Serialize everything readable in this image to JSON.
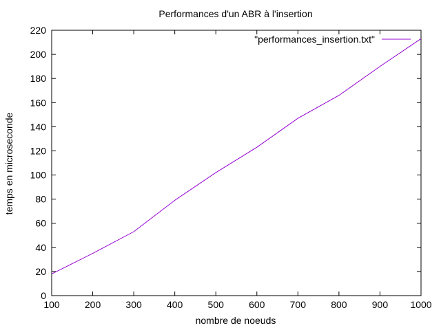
{
  "chart_data": {
    "type": "line",
    "title": "Performances d'un ABR à l'insertion",
    "xlabel": "nombre de noeuds",
    "ylabel": "temps en microseconde",
    "xlim": [
      100,
      1000
    ],
    "ylim": [
      0,
      220
    ],
    "xticks": [
      100,
      200,
      300,
      400,
      500,
      600,
      700,
      800,
      900,
      1000
    ],
    "yticks": [
      0,
      20,
      40,
      60,
      80,
      100,
      120,
      140,
      160,
      180,
      200,
      220
    ],
    "grid": false,
    "legend_position": "top-right",
    "series": [
      {
        "name": "\"performances_insertion.txt\"",
        "color": "#9400d3",
        "x": [
          100,
          200,
          300,
          400,
          500,
          600,
          700,
          800,
          900,
          1000
        ],
        "y": [
          18,
          35,
          53,
          79,
          102,
          123,
          147,
          166,
          190,
          213
        ]
      }
    ]
  }
}
